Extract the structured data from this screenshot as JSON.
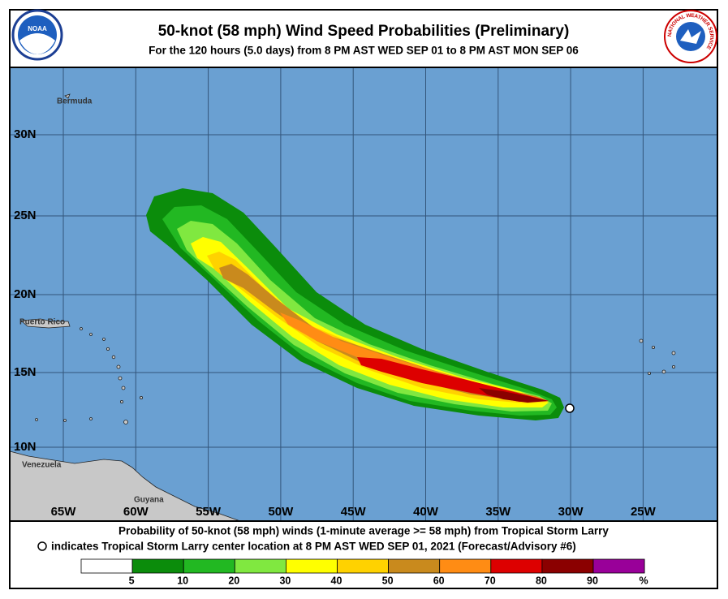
{
  "header": {
    "title": "50-knot (58 mph) Wind Speed Probabilities (Preliminary)",
    "subtitle": "For the 120 hours (5.0 days) from 8 PM AST WED SEP 01 to 8 PM AST MON SEP 06"
  },
  "logos": {
    "noaa": "NOAA",
    "nws": "NATIONAL WEATHER SERVICE"
  },
  "map": {
    "latitude_labels": [
      "30N",
      "25N",
      "20N",
      "15N",
      "10N"
    ],
    "longitude_labels": [
      "65W",
      "60W",
      "55W",
      "50W",
      "45W",
      "40W",
      "35W",
      "30W",
      "25W"
    ],
    "places": [
      "Bermuda",
      "Puerto Rico",
      "Venezuela",
      "Guyana"
    ]
  },
  "footer": {
    "line1": "Probability of 50-knot (58 mph) winds (1-minute average >= 58 mph) from Tropical Storm Larry",
    "line2": "indicates Tropical Storm Larry center location at 8 PM AST WED SEP 01, 2021 (Forecast/Advisory #6)"
  },
  "legend": {
    "colors": [
      "#ffffff",
      "#0b8c0b",
      "#22b822",
      "#80e840",
      "#ffff00",
      "#ffd200",
      "#c98a1d",
      "#ff8c14",
      "#dd0000",
      "#8b0000",
      "#990099"
    ],
    "labels": [
      "5",
      "10",
      "20",
      "30",
      "40",
      "50",
      "60",
      "70",
      "80",
      "90",
      "%"
    ]
  }
}
